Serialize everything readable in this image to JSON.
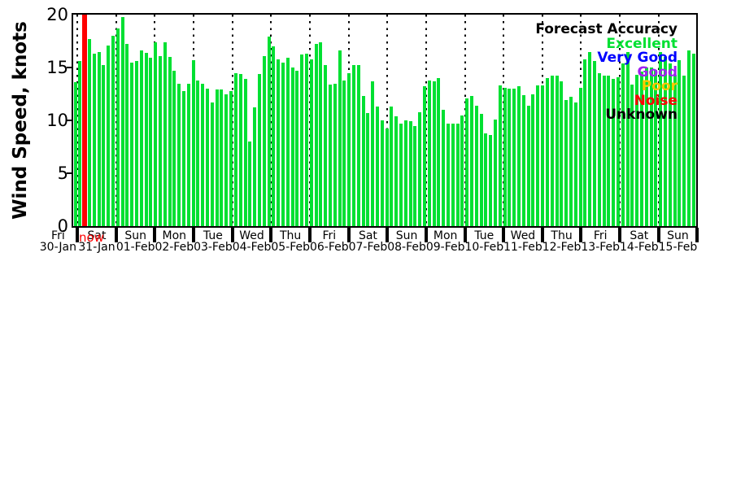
{
  "y_axis": {
    "label": "Wind Speed, knots",
    "ticks": [
      "0",
      "5",
      "10",
      "15",
      "20"
    ]
  },
  "x_axis": {
    "days": [
      {
        "weekday": "Fri",
        "date": "30-Jan"
      },
      {
        "weekday": "Sat",
        "date": "31-Jan"
      },
      {
        "weekday": "Sun",
        "date": "01-Feb"
      },
      {
        "weekday": "Mon",
        "date": "02-Feb"
      },
      {
        "weekday": "Tue",
        "date": "03-Feb"
      },
      {
        "weekday": "Wed",
        "date": "04-Feb"
      },
      {
        "weekday": "Thu",
        "date": "05-Feb"
      },
      {
        "weekday": "Fri",
        "date": "06-Feb"
      },
      {
        "weekday": "Sat",
        "date": "07-Feb"
      },
      {
        "weekday": "Sun",
        "date": "08-Feb"
      },
      {
        "weekday": "Mon",
        "date": "09-Feb"
      },
      {
        "weekday": "Tue",
        "date": "10-Feb"
      },
      {
        "weekday": "Wed",
        "date": "11-Feb"
      },
      {
        "weekday": "Thu",
        "date": "12-Feb"
      },
      {
        "weekday": "Fri",
        "date": "13-Feb"
      },
      {
        "weekday": "Sat",
        "date": "14-Feb"
      },
      {
        "weekday": "Sun",
        "date": "15-Feb"
      }
    ]
  },
  "legend": {
    "title": "Forecast Accuracy",
    "entries": [
      {
        "label": "Excellent",
        "color": "#00e032"
      },
      {
        "label": "Very Good",
        "color": "#0000ff"
      },
      {
        "label": "Good",
        "color": "#a020f0"
      },
      {
        "label": "Poor",
        "color": "#ffc800"
      },
      {
        "label": "Noise",
        "color": "#ff0000"
      },
      {
        "label": "Unknown",
        "color": "#000000"
      }
    ]
  },
  "now_marker": {
    "label": "now",
    "color": "#ff0000",
    "slot_index": 2
  },
  "chart_data": {
    "type": "bar",
    "ylabel": "Wind Speed, knots",
    "unit": "knots",
    "ylim": [
      0,
      20
    ],
    "y_ticks": [
      0,
      5,
      10,
      15,
      20
    ],
    "bar_color": "#00e032",
    "bar_accuracy_class": "Excellent",
    "bars_per_day": 8,
    "x_start_day": "Fri 30-Jan",
    "x_end_day": "Sun 15-Feb",
    "grid": "vertical dotted lines at each midnight day boundary",
    "legend_position": "top-right inside plot",
    "values_before_now": [
      13.6,
      15.6
    ],
    "values_after_now": [
      17.7,
      16.3,
      16.5,
      15.2,
      17.1,
      18.0,
      18.7,
      19.8,
      17.2,
      15.5,
      15.6,
      16.6,
      16.4,
      15.9,
      17.4,
      16.1,
      17.4,
      16.0,
      14.7,
      13.5,
      12.8,
      13.5,
      15.7,
      13.8,
      13.5,
      13.0,
      11.7,
      12.9,
      12.9,
      12.5,
      12.8,
      14.5,
      14.4,
      13.9,
      8.0,
      11.2,
      14.4,
      16.1,
      17.9,
      17.0,
      15.8,
      15.5,
      15.9,
      15.0,
      14.7,
      16.2,
      16.3,
      15.8,
      17.2,
      17.4,
      15.2,
      13.4,
      13.5,
      16.6,
      13.8,
      14.5,
      15.2,
      15.2,
      12.3,
      10.7,
      13.7,
      11.3,
      10.0,
      9.2,
      11.3,
      10.4,
      9.7,
      10.0,
      9.9,
      9.5,
      10.8,
      13.2,
      13.8,
      13.7,
      14.0,
      11.0,
      9.7,
      9.7,
      9.7,
      10.5,
      12.1,
      12.3,
      11.4,
      10.6,
      8.8,
      8.6,
      10.1,
      13.3,
      13.1,
      13.0,
      13.0,
      13.2,
      12.4,
      11.4,
      12.5,
      13.3,
      13.3,
      14.0,
      14.2,
      14.2,
      13.7,
      11.9,
      12.2,
      11.7,
      13.1,
      15.8,
      16.5,
      15.6,
      14.5,
      14.2,
      14.2,
      13.9,
      14.1,
      15.4,
      16.5,
      13.4,
      14.3,
      14.6,
      15.0,
      15.0,
      14.8,
      16.5,
      16.0,
      15.4,
      14.3,
      15.7,
      14.2,
      16.6,
      16.3
    ]
  }
}
